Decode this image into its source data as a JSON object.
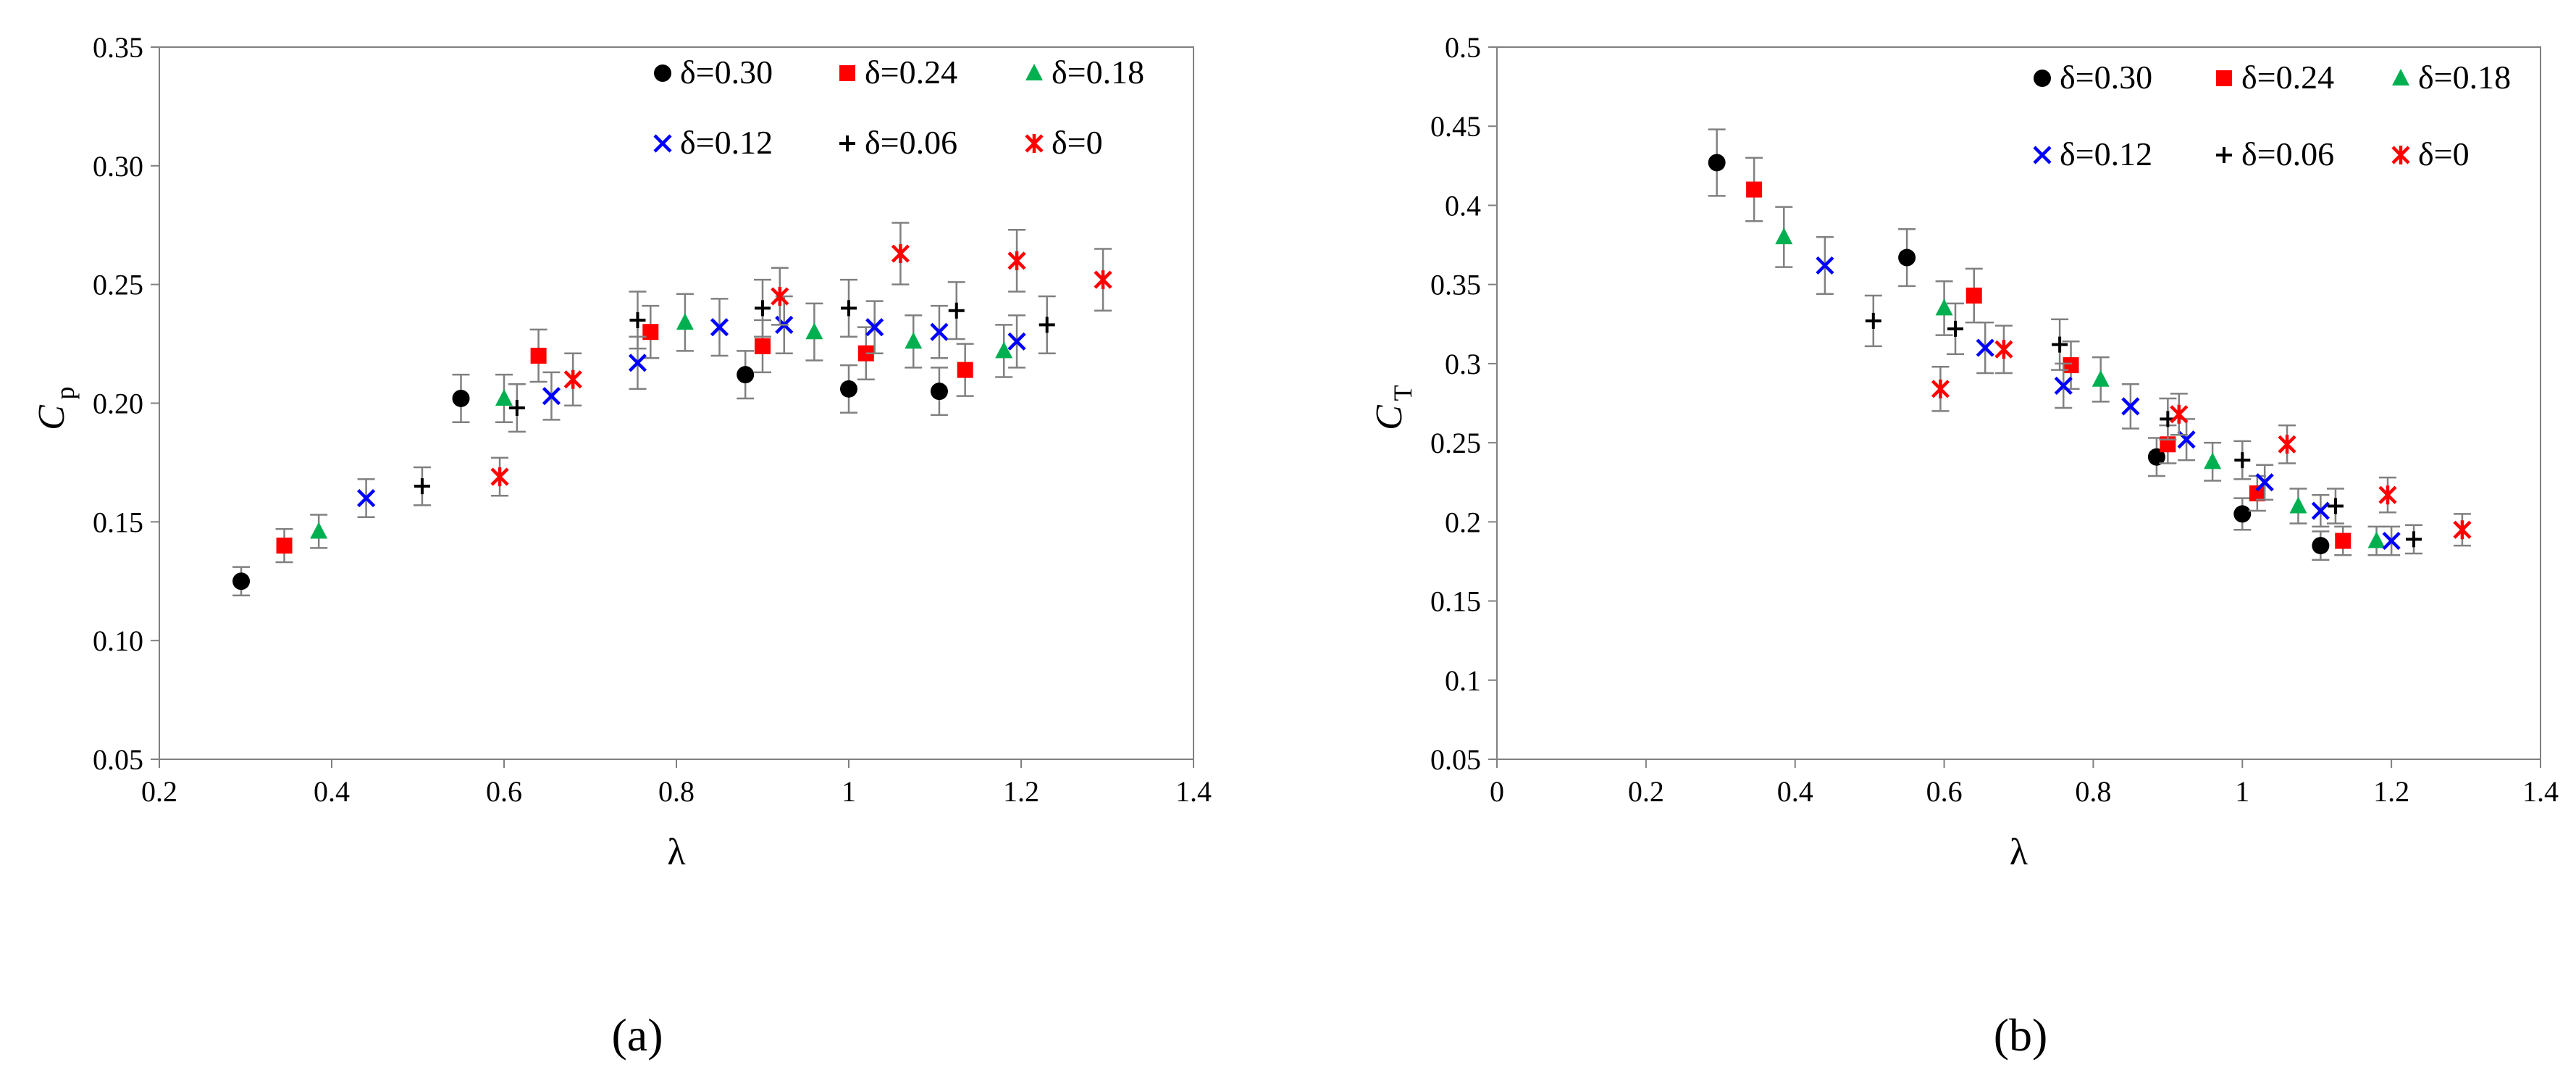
{
  "chart_data": [
    {
      "type": "scatter",
      "caption": "(a)",
      "xlabel": "λ",
      "ylabel": "C",
      "ylabel_sub": "p",
      "xlim": [
        0.2,
        1.4
      ],
      "ylim": [
        0.05,
        0.35
      ],
      "xticks": [
        0.2,
        0.4,
        0.6,
        0.8,
        1.0,
        1.2,
        1.4
      ],
      "xtick_labels": [
        "0.2",
        "0.4",
        "0.6",
        "0.8",
        "1",
        "1.2",
        "1.4"
      ],
      "yticks": [
        0.05,
        0.1,
        0.15,
        0.2,
        0.25,
        0.3,
        0.35
      ],
      "ytick_labels": [
        "0.05",
        "0.10",
        "0.15",
        "0.20",
        "0.25",
        "0.30",
        "0.35"
      ],
      "grid": false,
      "legend": "top-right, 3 columns",
      "series": [
        {
          "name": "δ=0.30",
          "marker": "circle",
          "color": "#000000",
          "x": [
            0.295,
            0.55,
            0.88,
            1.0,
            1.105
          ],
          "y": [
            0.125,
            0.202,
            0.212,
            0.206,
            0.205
          ],
          "err": [
            0.006,
            0.01,
            0.01,
            0.01,
            0.01
          ]
        },
        {
          "name": "δ=0.24",
          "marker": "square",
          "color": "#ff0000",
          "x": [
            0.345,
            0.64,
            0.77,
            0.9,
            1.02,
            1.135
          ],
          "y": [
            0.14,
            0.22,
            0.23,
            0.224,
            0.221,
            0.214
          ],
          "err": [
            0.007,
            0.011,
            0.011,
            0.011,
            0.011,
            0.011
          ]
        },
        {
          "name": "δ=0.18",
          "marker": "triangle",
          "color": "#00b050",
          "x": [
            0.385,
            0.6,
            0.81,
            0.96,
            1.075,
            1.18
          ],
          "y": [
            0.146,
            0.202,
            0.234,
            0.23,
            0.226,
            0.222
          ],
          "err": [
            0.007,
            0.01,
            0.012,
            0.012,
            0.011,
            0.011
          ]
        },
        {
          "name": "δ=0.12",
          "marker": "x",
          "color": "#0000ff",
          "x": [
            0.44,
            0.655,
            0.755,
            0.85,
            0.925,
            1.03,
            1.105,
            1.195
          ],
          "y": [
            0.16,
            0.203,
            0.217,
            0.232,
            0.233,
            0.232,
            0.23,
            0.226
          ],
          "err": [
            0.008,
            0.01,
            0.011,
            0.012,
            0.012,
            0.011,
            0.011,
            0.011
          ]
        },
        {
          "name": "δ=0.06",
          "marker": "plus",
          "color": "#000000",
          "x": [
            0.505,
            0.615,
            0.755,
            0.9,
            1.0,
            1.125,
            1.23
          ],
          "y": [
            0.165,
            0.198,
            0.235,
            0.24,
            0.24,
            0.239,
            0.233
          ],
          "err": [
            0.008,
            0.01,
            0.012,
            0.012,
            0.012,
            0.012,
            0.012
          ]
        },
        {
          "name": "δ=0",
          "marker": "star",
          "color": "#ff0000",
          "x": [
            0.595,
            0.68,
            0.92,
            1.06,
            1.195,
            1.295
          ],
          "y": [
            0.169,
            0.21,
            0.245,
            0.263,
            0.26,
            0.252
          ],
          "err": [
            0.008,
            0.011,
            0.012,
            0.013,
            0.013,
            0.013
          ]
        }
      ]
    },
    {
      "type": "scatter",
      "caption": "(b)",
      "xlabel": "λ",
      "ylabel": "C",
      "ylabel_sub": "T",
      "xlim": [
        0,
        1.4
      ],
      "ylim": [
        0.05,
        0.5
      ],
      "xticks": [
        0,
        0.2,
        0.4,
        0.6,
        0.8,
        1.0,
        1.2,
        1.4
      ],
      "xtick_labels": [
        "0",
        "0.2",
        "0.4",
        "0.6",
        "0.8",
        "1",
        "1.2",
        "1.4"
      ],
      "yticks": [
        0.05,
        0.1,
        0.15,
        0.2,
        0.25,
        0.3,
        0.35,
        0.4,
        0.45,
        0.5
      ],
      "ytick_labels": [
        "0.05",
        "0.1",
        "0.15",
        "0.2",
        "0.25",
        "0.3",
        "0.35",
        "0.4",
        "0.45",
        "0.5"
      ],
      "grid": false,
      "legend": "top-right, 3 columns",
      "series": [
        {
          "name": "δ=0.30",
          "marker": "circle",
          "color": "#000000",
          "x": [
            0.295,
            0.55,
            0.885,
            1.0,
            1.105
          ],
          "y": [
            0.427,
            0.367,
            0.241,
            0.205,
            0.185
          ],
          "err": [
            0.021,
            0.018,
            0.012,
            0.01,
            0.009
          ]
        },
        {
          "name": "δ=0.24",
          "marker": "square",
          "color": "#ff0000",
          "x": [
            0.345,
            0.64,
            0.77,
            0.9,
            1.02,
            1.135
          ],
          "y": [
            0.41,
            0.343,
            0.299,
            0.249,
            0.218,
            0.188
          ],
          "err": [
            0.02,
            0.017,
            0.015,
            0.012,
            0.011,
            0.009
          ]
        },
        {
          "name": "δ=0.18",
          "marker": "triangle",
          "color": "#00b050",
          "x": [
            0.385,
            0.6,
            0.81,
            0.96,
            1.075,
            1.18
          ],
          "y": [
            0.38,
            0.335,
            0.29,
            0.238,
            0.21,
            0.188
          ],
          "err": [
            0.019,
            0.017,
            0.014,
            0.012,
            0.011,
            0.009
          ]
        },
        {
          "name": "δ=0.12",
          "marker": "x",
          "color": "#0000ff",
          "x": [
            0.44,
            0.655,
            0.76,
            0.85,
            0.925,
            1.03,
            1.105,
            1.2
          ],
          "y": [
            0.362,
            0.31,
            0.286,
            0.273,
            0.252,
            0.225,
            0.207,
            0.188
          ],
          "err": [
            0.018,
            0.016,
            0.014,
            0.014,
            0.013,
            0.011,
            0.01,
            0.009
          ]
        },
        {
          "name": "δ=0.06",
          "marker": "plus",
          "color": "#000000",
          "x": [
            0.505,
            0.615,
            0.755,
            0.9,
            1.0,
            1.125,
            1.23
          ],
          "y": [
            0.327,
            0.322,
            0.312,
            0.265,
            0.239,
            0.21,
            0.189
          ],
          "err": [
            0.016,
            0.016,
            0.016,
            0.013,
            0.012,
            0.011,
            0.009
          ]
        },
        {
          "name": "δ=0",
          "marker": "star",
          "color": "#ff0000",
          "x": [
            0.595,
            0.68,
            0.915,
            1.06,
            1.195,
            1.295
          ],
          "y": [
            0.284,
            0.309,
            0.268,
            0.249,
            0.217,
            0.195
          ],
          "err": [
            0.014,
            0.015,
            0.013,
            0.012,
            0.011,
            0.01
          ]
        }
      ]
    }
  ]
}
